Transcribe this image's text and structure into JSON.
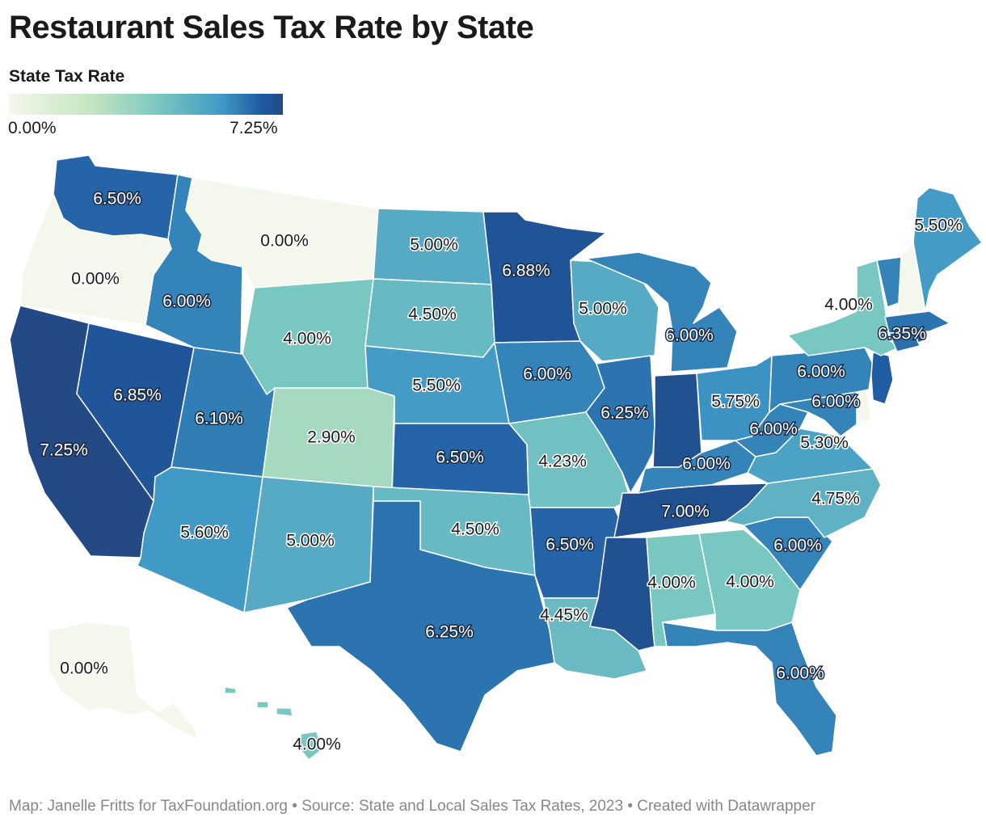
{
  "title": "Restaurant Sales Tax Rate by State",
  "legend": {
    "title": "State Tax Rate",
    "min_label": "0.00%",
    "max_label": "7.25%",
    "min": 0,
    "max": 7.25
  },
  "source": "Map: Janelle Fritts for TaxFoundation.org • Source: State and Local Sales Tax Rates, 2023 • Created with Datawrapper",
  "states": [
    {
      "id": "WA",
      "rate": 6.5,
      "label": "6.50%"
    },
    {
      "id": "OR",
      "rate": 0,
      "label": "0.00%"
    },
    {
      "id": "CA",
      "rate": 7.25,
      "label": "7.25%"
    },
    {
      "id": "NV",
      "rate": 6.85,
      "label": "6.85%"
    },
    {
      "id": "ID",
      "rate": 6.0,
      "label": "6.00%"
    },
    {
      "id": "MT",
      "rate": 0,
      "label": "0.00%"
    },
    {
      "id": "WY",
      "rate": 4.0,
      "label": "4.00%"
    },
    {
      "id": "UT",
      "rate": 6.1,
      "label": "6.10%"
    },
    {
      "id": "AZ",
      "rate": 5.6,
      "label": "5.60%"
    },
    {
      "id": "CO",
      "rate": 2.9,
      "label": "2.90%"
    },
    {
      "id": "NM",
      "rate": 5.0,
      "label": "5.00%"
    },
    {
      "id": "ND",
      "rate": 5.0,
      "label": "5.00%"
    },
    {
      "id": "SD",
      "rate": 4.5,
      "label": "4.50%"
    },
    {
      "id": "NE",
      "rate": 5.5,
      "label": "5.50%"
    },
    {
      "id": "KS",
      "rate": 6.5,
      "label": "6.50%"
    },
    {
      "id": "OK",
      "rate": 4.5,
      "label": "4.50%"
    },
    {
      "id": "TX",
      "rate": 6.25,
      "label": "6.25%"
    },
    {
      "id": "MN",
      "rate": 6.88,
      "label": "6.88%"
    },
    {
      "id": "IA",
      "rate": 6.0,
      "label": "6.00%"
    },
    {
      "id": "MO",
      "rate": 4.23,
      "label": "4.23%"
    },
    {
      "id": "AR",
      "rate": 6.5,
      "label": "6.50%"
    },
    {
      "id": "LA",
      "rate": 4.45,
      "label": "4.45%"
    },
    {
      "id": "WI",
      "rate": 5.0,
      "label": "5.00%"
    },
    {
      "id": "IL",
      "rate": 6.25,
      "label": "6.25%"
    },
    {
      "id": "MI",
      "rate": 6.0,
      "label": "6.00%"
    },
    {
      "id": "IN",
      "rate": 7.0,
      "label": ""
    },
    {
      "id": "OH",
      "rate": 5.75,
      "label": "5.75%"
    },
    {
      "id": "KY",
      "rate": 6.0,
      "label": "6.00%"
    },
    {
      "id": "TN",
      "rate": 7.0,
      "label": "7.00%"
    },
    {
      "id": "MS",
      "rate": 7.0,
      "label": ""
    },
    {
      "id": "AL",
      "rate": 4.0,
      "label": "4.00%"
    },
    {
      "id": "GA",
      "rate": 4.0,
      "label": "4.00%"
    },
    {
      "id": "FL",
      "rate": 6.0,
      "label": "6.00%"
    },
    {
      "id": "SC",
      "rate": 6.0,
      "label": "6.00%"
    },
    {
      "id": "NC",
      "rate": 4.75,
      "label": "4.75%"
    },
    {
      "id": "VA",
      "rate": 5.3,
      "label": "5.30%"
    },
    {
      "id": "WV",
      "rate": 6.0,
      "label": "6.00%"
    },
    {
      "id": "MD",
      "rate": 6.0,
      "label": "6.00%"
    },
    {
      "id": "DE",
      "rate": 0,
      "label": ""
    },
    {
      "id": "PA",
      "rate": 6.0,
      "label": "6.00%"
    },
    {
      "id": "NJ",
      "rate": 6.63,
      "label": ""
    },
    {
      "id": "NY",
      "rate": 4.0,
      "label": "4.00%"
    },
    {
      "id": "CT",
      "rate": 6.35,
      "label": "6.35%"
    },
    {
      "id": "RI",
      "rate": 7.0,
      "label": ""
    },
    {
      "id": "MA",
      "rate": 6.25,
      "label": ""
    },
    {
      "id": "VT",
      "rate": 6.0,
      "label": ""
    },
    {
      "id": "NH",
      "rate": 0,
      "label": ""
    },
    {
      "id": "ME",
      "rate": 5.5,
      "label": "5.50%"
    },
    {
      "id": "AK",
      "rate": 0,
      "label": "0.00%"
    },
    {
      "id": "HI",
      "rate": 4.0,
      "label": "4.00%"
    }
  ]
}
